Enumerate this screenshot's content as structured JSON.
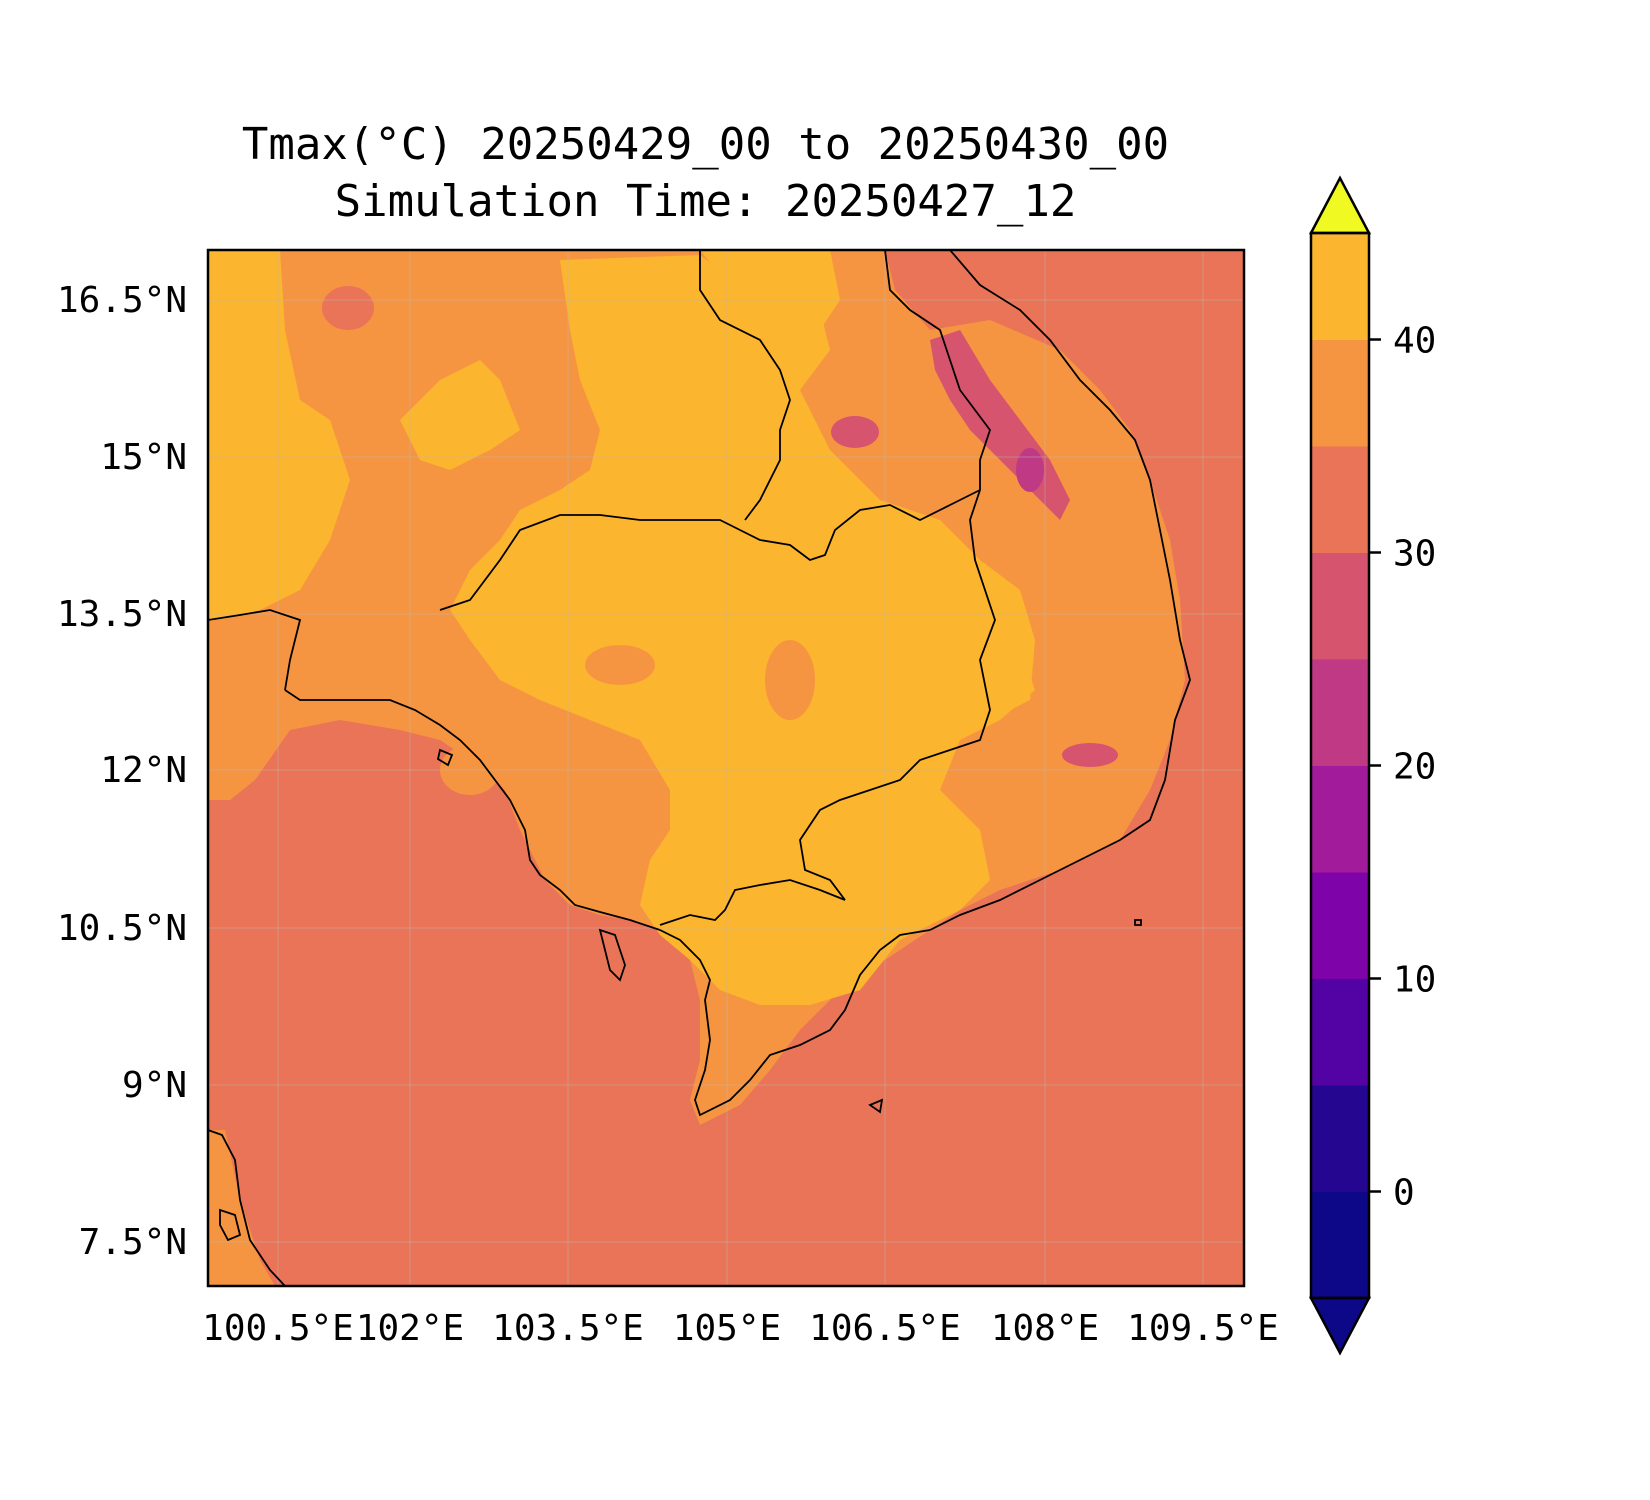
{
  "title": {
    "line1": "Tmax(°C) 20250429_00 to 20250430_00",
    "line2": "Simulation Time: 20250427_12"
  },
  "map": {
    "lon_ticks": [
      "100.5°E",
      "102°E",
      "103.5°E",
      "105°E",
      "106.5°E",
      "108°E",
      "109.5°E"
    ],
    "lat_ticks": [
      "16.5°N",
      "15°N",
      "13.5°N",
      "12°N",
      "10.5°N",
      "9°N",
      "7.5°N"
    ],
    "gridlines": true,
    "coastlines": true,
    "country_borders": true
  },
  "colorbar": {
    "orientation": "vertical",
    "extend": "both",
    "tick_labels": [
      "0",
      "10",
      "20",
      "30",
      "40"
    ],
    "levels": [
      -5,
      0,
      5,
      10,
      15,
      20,
      25,
      30,
      35,
      40,
      45
    ],
    "colors": [
      "#0d0887",
      "#240691",
      "#5302a3",
      "#7e03a8",
      "#a11b9b",
      "#bf3984",
      "#d6546e",
      "#ea7457",
      "#f69541",
      "#fcb52e",
      "#f3e52a"
    ],
    "under_color": "#0d0887",
    "over_color": "#f0f921"
  },
  "legend_colors": {
    "ocean": "#ea7457",
    "band_30_35": "#f69541",
    "band_35_40": "#fcb52e",
    "band_20_25": "#d6546e",
    "band_15_20": "#bf3984"
  }
}
